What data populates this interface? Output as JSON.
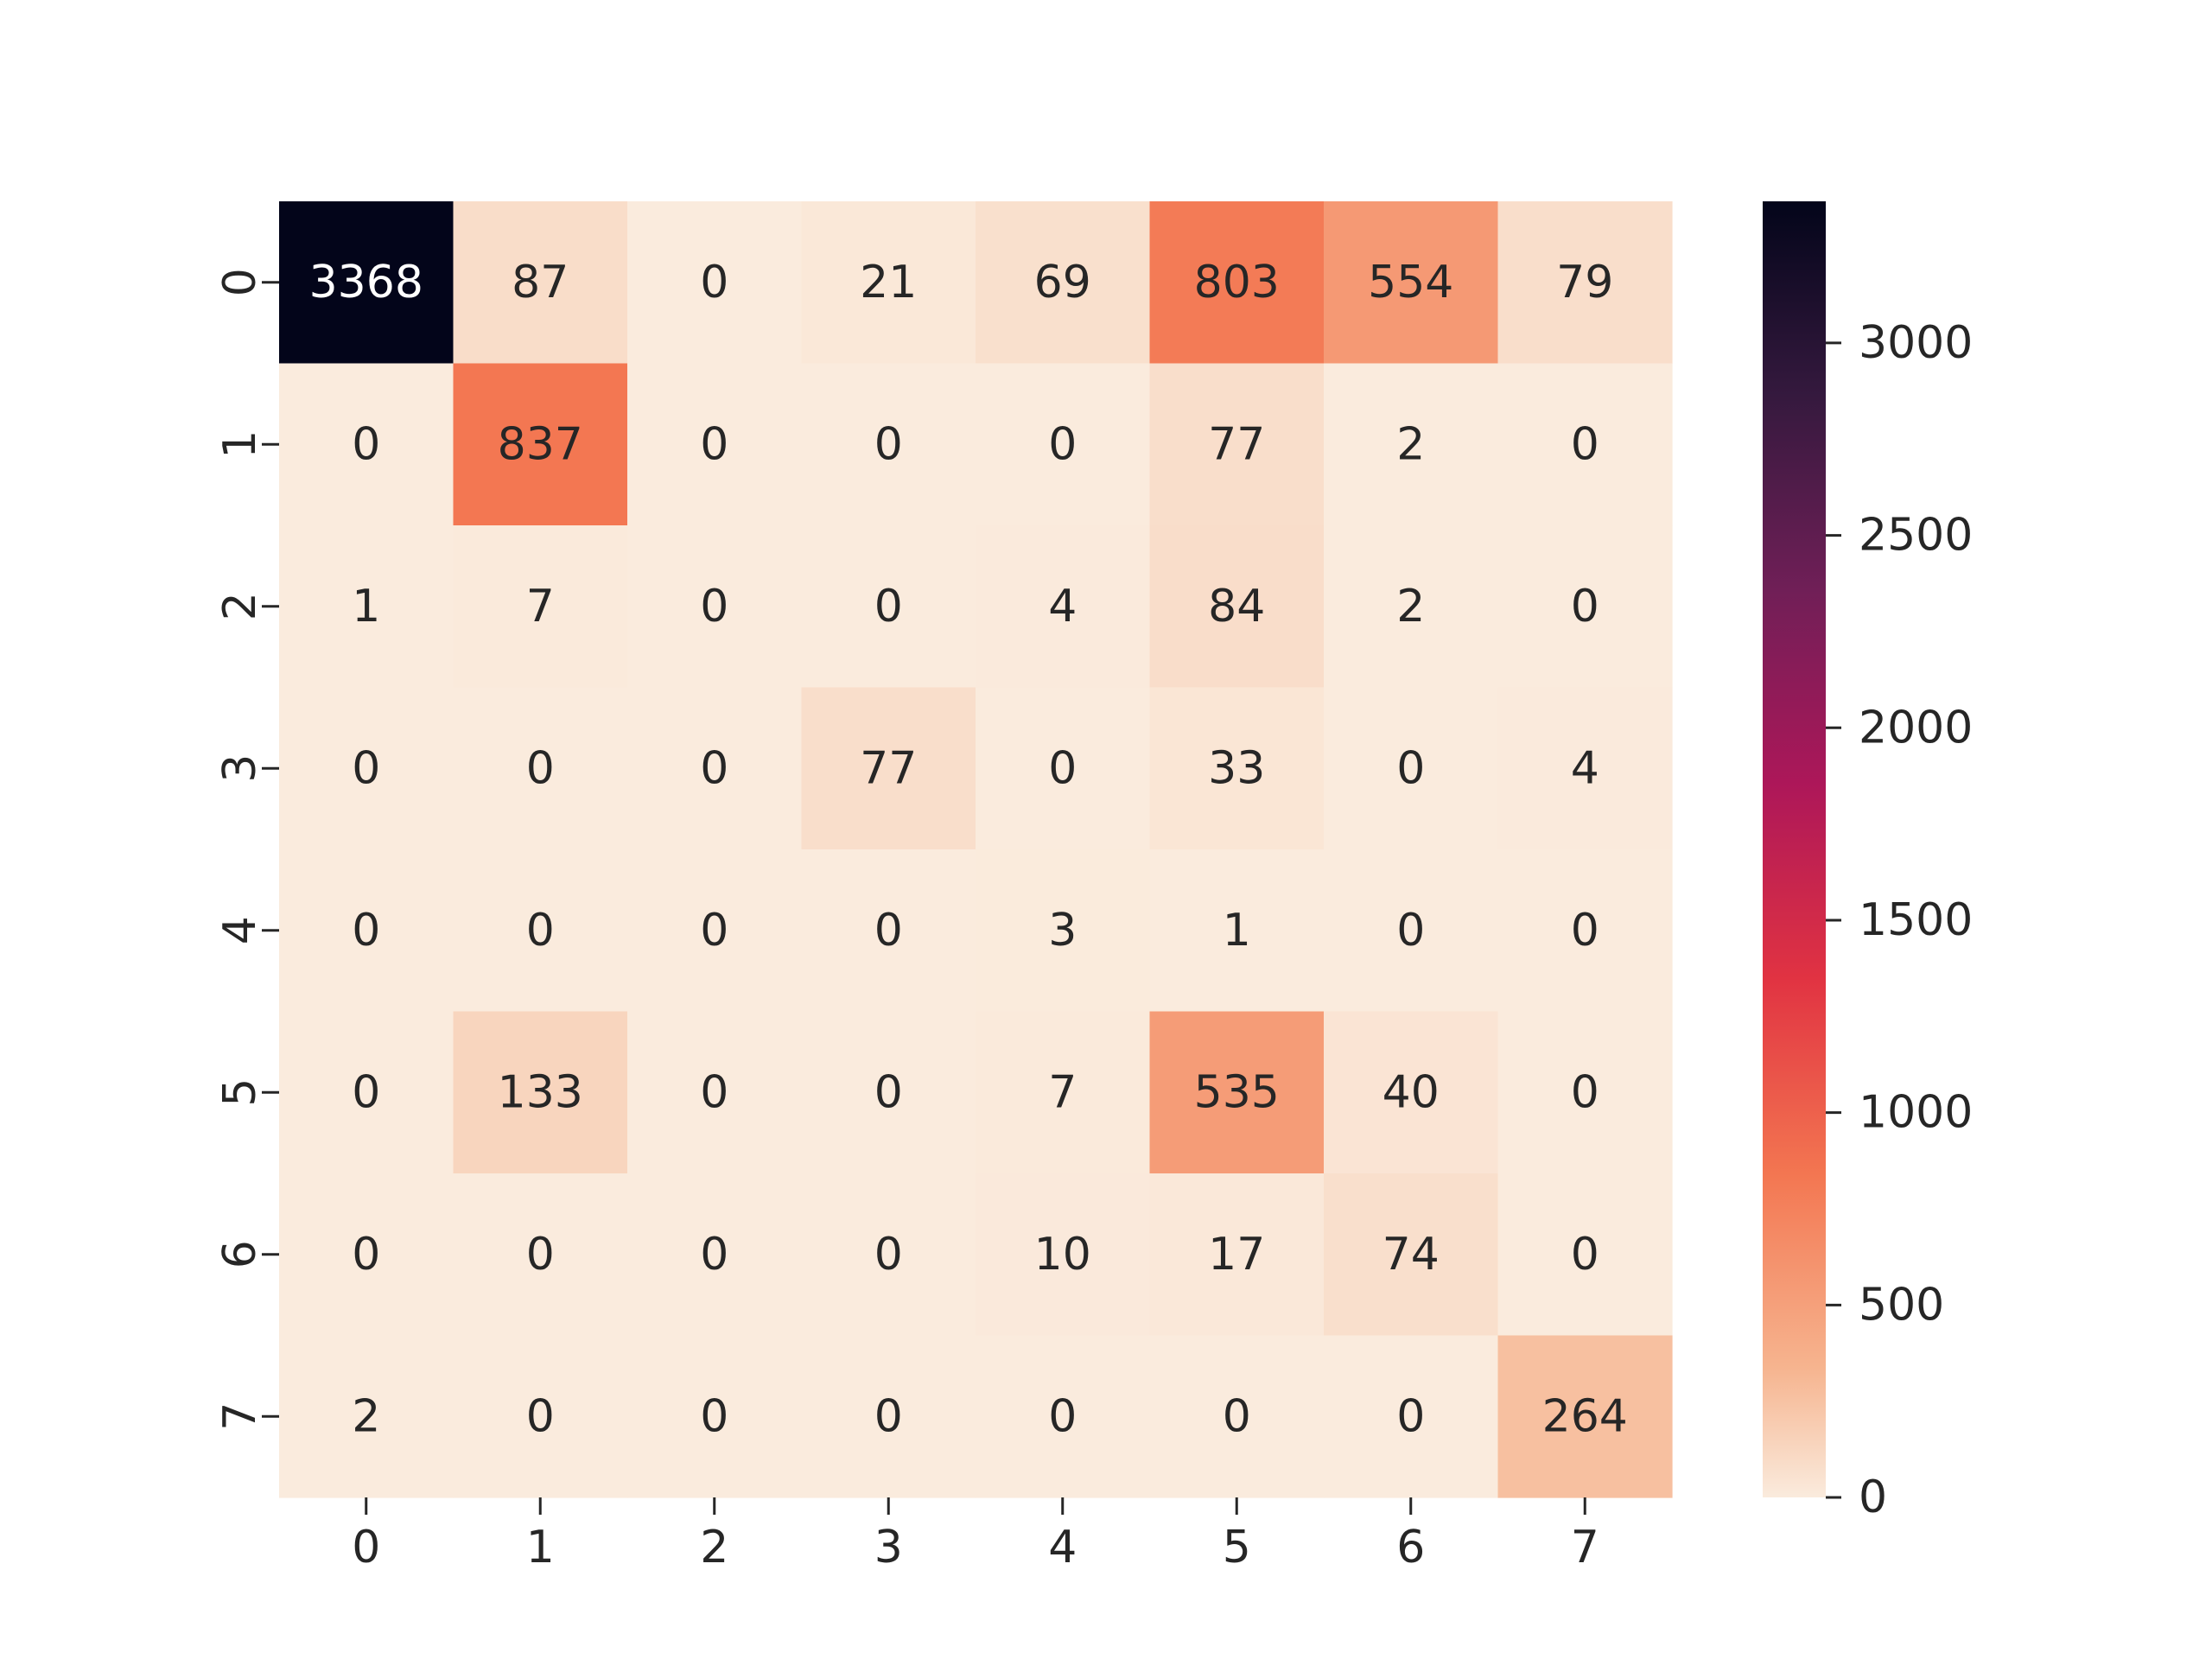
{
  "chart_data": {
    "type": "heatmap",
    "title": "",
    "xlabel": "",
    "ylabel": "",
    "x_categories": [
      "0",
      "1",
      "2",
      "3",
      "4",
      "5",
      "6",
      "7"
    ],
    "y_categories": [
      "0",
      "1",
      "2",
      "3",
      "4",
      "5",
      "6",
      "7"
    ],
    "values": [
      [
        3368,
        87,
        0,
        21,
        69,
        803,
        554,
        79
      ],
      [
        0,
        837,
        0,
        0,
        0,
        77,
        2,
        0
      ],
      [
        1,
        7,
        0,
        0,
        4,
        84,
        2,
        0
      ],
      [
        0,
        0,
        0,
        77,
        0,
        33,
        0,
        4
      ],
      [
        0,
        0,
        0,
        0,
        3,
        1,
        0,
        0
      ],
      [
        0,
        133,
        0,
        0,
        7,
        535,
        40,
        0
      ],
      [
        0,
        0,
        0,
        0,
        10,
        17,
        74,
        0
      ],
      [
        2,
        0,
        0,
        0,
        0,
        0,
        0,
        264
      ]
    ],
    "colorbar": {
      "min": 0,
      "max": 3368,
      "ticks": [
        0,
        500,
        1000,
        1500,
        2000,
        2500,
        3000
      ],
      "tick_labels": [
        "0",
        "500",
        "1000",
        "1500",
        "2000",
        "2500",
        "3000"
      ]
    },
    "colormap": "rocket_r",
    "grid": false,
    "legend": "colorbar-right"
  }
}
